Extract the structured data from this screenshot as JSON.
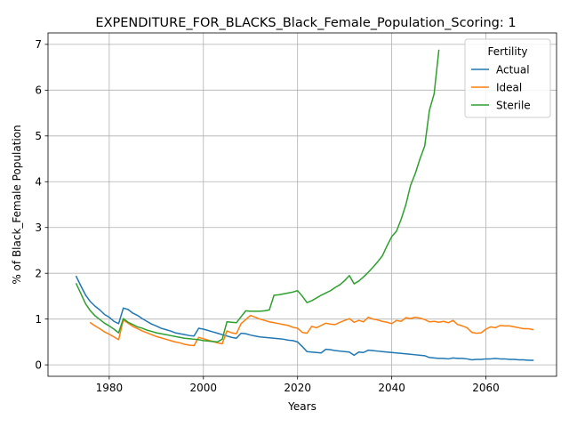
{
  "chart_data": {
    "type": "line",
    "title": "EXPENDITURE_FOR_BLACKS_Black_Female_Population_Scoring: 1",
    "xlabel": "Years",
    "ylabel": "% of Black_Female Population",
    "xlim": [
      1967,
      2075
    ],
    "ylim": [
      -0.25,
      7.25
    ],
    "x_ticks": [
      1980,
      2000,
      2020,
      2040,
      2060
    ],
    "y_ticks": [
      0,
      1,
      2,
      3,
      4,
      5,
      6,
      7
    ],
    "grid": true,
    "legend": {
      "title": "Fertility",
      "position": "top-right"
    },
    "series": [
      {
        "name": "Actual",
        "color": "#1f77b4",
        "points": [
          [
            1973,
            1.93
          ],
          [
            1974,
            1.72
          ],
          [
            1975,
            1.52
          ],
          [
            1976,
            1.38
          ],
          [
            1977,
            1.28
          ],
          [
            1978,
            1.2
          ],
          [
            1979,
            1.1
          ],
          [
            1980,
            1.04
          ],
          [
            1981,
            0.95
          ],
          [
            1982,
            0.9
          ],
          [
            1983,
            1.24
          ],
          [
            1984,
            1.21
          ],
          [
            1985,
            1.13
          ],
          [
            1986,
            1.08
          ],
          [
            1987,
            1.01
          ],
          [
            1988,
            0.95
          ],
          [
            1989,
            0.89
          ],
          [
            1990,
            0.85
          ],
          [
            1991,
            0.8
          ],
          [
            1992,
            0.77
          ],
          [
            1993,
            0.74
          ],
          [
            1994,
            0.7
          ],
          [
            1995,
            0.68
          ],
          [
            1996,
            0.66
          ],
          [
            1997,
            0.64
          ],
          [
            1998,
            0.63
          ],
          [
            1999,
            0.8
          ],
          [
            2000,
            0.78
          ],
          [
            2001,
            0.75
          ],
          [
            2002,
            0.72
          ],
          [
            2003,
            0.69
          ],
          [
            2004,
            0.66
          ],
          [
            2005,
            0.63
          ],
          [
            2006,
            0.6
          ],
          [
            2007,
            0.58
          ],
          [
            2008,
            0.69
          ],
          [
            2009,
            0.68
          ],
          [
            2010,
            0.65
          ],
          [
            2011,
            0.63
          ],
          [
            2012,
            0.61
          ],
          [
            2013,
            0.6
          ],
          [
            2014,
            0.59
          ],
          [
            2015,
            0.58
          ],
          [
            2016,
            0.57
          ],
          [
            2017,
            0.56
          ],
          [
            2018,
            0.54
          ],
          [
            2019,
            0.53
          ],
          [
            2020,
            0.5
          ],
          [
            2021,
            0.4
          ],
          [
            2022,
            0.29
          ],
          [
            2023,
            0.28
          ],
          [
            2024,
            0.27
          ],
          [
            2025,
            0.26
          ],
          [
            2026,
            0.34
          ],
          [
            2027,
            0.33
          ],
          [
            2028,
            0.31
          ],
          [
            2029,
            0.3
          ],
          [
            2030,
            0.29
          ],
          [
            2031,
            0.28
          ],
          [
            2032,
            0.21
          ],
          [
            2033,
            0.28
          ],
          [
            2034,
            0.27
          ],
          [
            2035,
            0.32
          ],
          [
            2036,
            0.31
          ],
          [
            2037,
            0.3
          ],
          [
            2038,
            0.29
          ],
          [
            2039,
            0.28
          ],
          [
            2040,
            0.27
          ],
          [
            2041,
            0.26
          ],
          [
            2042,
            0.25
          ],
          [
            2043,
            0.24
          ],
          [
            2044,
            0.23
          ],
          [
            2045,
            0.22
          ],
          [
            2046,
            0.21
          ],
          [
            2047,
            0.2
          ],
          [
            2048,
            0.16
          ],
          [
            2049,
            0.15
          ],
          [
            2050,
            0.14
          ],
          [
            2051,
            0.14
          ],
          [
            2052,
            0.13
          ],
          [
            2053,
            0.15
          ],
          [
            2054,
            0.14
          ],
          [
            2055,
            0.14
          ],
          [
            2056,
            0.13
          ],
          [
            2057,
            0.11
          ],
          [
            2058,
            0.12
          ],
          [
            2059,
            0.12
          ],
          [
            2060,
            0.13
          ],
          [
            2061,
            0.13
          ],
          [
            2062,
            0.14
          ],
          [
            2063,
            0.13
          ],
          [
            2064,
            0.13
          ],
          [
            2065,
            0.12
          ],
          [
            2066,
            0.12
          ],
          [
            2067,
            0.11
          ],
          [
            2068,
            0.11
          ],
          [
            2069,
            0.1
          ],
          [
            2070,
            0.1
          ]
        ]
      },
      {
        "name": "Ideal",
        "color": "#ff7f0e",
        "points": [
          [
            1976,
            0.92
          ],
          [
            1977,
            0.85
          ],
          [
            1978,
            0.79
          ],
          [
            1979,
            0.72
          ],
          [
            1980,
            0.67
          ],
          [
            1981,
            0.61
          ],
          [
            1982,
            0.55
          ],
          [
            1983,
            0.98
          ],
          [
            1984,
            0.91
          ],
          [
            1985,
            0.84
          ],
          [
            1986,
            0.79
          ],
          [
            1987,
            0.74
          ],
          [
            1988,
            0.7
          ],
          [
            1989,
            0.66
          ],
          [
            1990,
            0.62
          ],
          [
            1991,
            0.59
          ],
          [
            1992,
            0.56
          ],
          [
            1993,
            0.53
          ],
          [
            1994,
            0.5
          ],
          [
            1995,
            0.48
          ],
          [
            1996,
            0.45
          ],
          [
            1997,
            0.43
          ],
          [
            1998,
            0.42
          ],
          [
            1999,
            0.6
          ],
          [
            2000,
            0.57
          ],
          [
            2001,
            0.54
          ],
          [
            2002,
            0.51
          ],
          [
            2003,
            0.48
          ],
          [
            2004,
            0.46
          ],
          [
            2005,
            0.74
          ],
          [
            2006,
            0.7
          ],
          [
            2007,
            0.68
          ],
          [
            2008,
            0.9
          ],
          [
            2009,
            0.99
          ],
          [
            2010,
            1.08
          ],
          [
            2011,
            1.04
          ],
          [
            2012,
            1.0
          ],
          [
            2013,
            0.97
          ],
          [
            2014,
            0.94
          ],
          [
            2015,
            0.92
          ],
          [
            2016,
            0.9
          ],
          [
            2017,
            0.88
          ],
          [
            2018,
            0.86
          ],
          [
            2019,
            0.82
          ],
          [
            2020,
            0.8
          ],
          [
            2021,
            0.71
          ],
          [
            2022,
            0.69
          ],
          [
            2023,
            0.84
          ],
          [
            2024,
            0.81
          ],
          [
            2025,
            0.86
          ],
          [
            2026,
            0.91
          ],
          [
            2027,
            0.89
          ],
          [
            2028,
            0.88
          ],
          [
            2029,
            0.93
          ],
          [
            2030,
            0.97
          ],
          [
            2031,
            1.01
          ],
          [
            2032,
            0.93
          ],
          [
            2033,
            0.97
          ],
          [
            2034,
            0.94
          ],
          [
            2035,
            1.04
          ],
          [
            2036,
            1.0
          ],
          [
            2037,
            0.98
          ],
          [
            2038,
            0.95
          ],
          [
            2039,
            0.93
          ],
          [
            2040,
            0.9
          ],
          [
            2041,
            0.97
          ],
          [
            2042,
            0.95
          ],
          [
            2043,
            1.03
          ],
          [
            2044,
            1.01
          ],
          [
            2045,
            1.04
          ],
          [
            2046,
            1.02
          ],
          [
            2047,
            0.99
          ],
          [
            2048,
            0.94
          ],
          [
            2049,
            0.95
          ],
          [
            2050,
            0.93
          ],
          [
            2051,
            0.95
          ],
          [
            2052,
            0.92
          ],
          [
            2053,
            0.97
          ],
          [
            2054,
            0.88
          ],
          [
            2055,
            0.85
          ],
          [
            2056,
            0.81
          ],
          [
            2057,
            0.71
          ],
          [
            2058,
            0.69
          ],
          [
            2059,
            0.7
          ],
          [
            2060,
            0.78
          ],
          [
            2061,
            0.83
          ],
          [
            2062,
            0.81
          ],
          [
            2063,
            0.86
          ],
          [
            2064,
            0.85
          ],
          [
            2065,
            0.85
          ],
          [
            2066,
            0.83
          ],
          [
            2067,
            0.81
          ],
          [
            2068,
            0.79
          ],
          [
            2069,
            0.79
          ],
          [
            2070,
            0.77
          ]
        ]
      },
      {
        "name": "Sterile",
        "color": "#2ca02c",
        "points": [
          [
            1973,
            1.77
          ],
          [
            1974,
            1.55
          ],
          [
            1975,
            1.33
          ],
          [
            1976,
            1.18
          ],
          [
            1977,
            1.07
          ],
          [
            1978,
            0.99
          ],
          [
            1979,
            0.91
          ],
          [
            1980,
            0.85
          ],
          [
            1981,
            0.78
          ],
          [
            1982,
            0.7
          ],
          [
            1983,
            1.01
          ],
          [
            1984,
            0.93
          ],
          [
            1985,
            0.88
          ],
          [
            1986,
            0.83
          ],
          [
            1987,
            0.8
          ],
          [
            1988,
            0.76
          ],
          [
            1989,
            0.73
          ],
          [
            1990,
            0.7
          ],
          [
            1991,
            0.68
          ],
          [
            1992,
            0.66
          ],
          [
            1993,
            0.64
          ],
          [
            1994,
            0.62
          ],
          [
            1995,
            0.6
          ],
          [
            1996,
            0.58
          ],
          [
            1997,
            0.57
          ],
          [
            1998,
            0.56
          ],
          [
            1999,
            0.55
          ],
          [
            2000,
            0.53
          ],
          [
            2001,
            0.52
          ],
          [
            2002,
            0.51
          ],
          [
            2003,
            0.5
          ],
          [
            2004,
            0.56
          ],
          [
            2005,
            0.94
          ],
          [
            2006,
            0.93
          ],
          [
            2007,
            0.92
          ],
          [
            2008,
            1.05
          ],
          [
            2009,
            1.18
          ],
          [
            2010,
            1.17
          ],
          [
            2011,
            1.17
          ],
          [
            2012,
            1.17
          ],
          [
            2013,
            1.18
          ],
          [
            2014,
            1.2
          ],
          [
            2015,
            1.52
          ],
          [
            2016,
            1.53
          ],
          [
            2017,
            1.55
          ],
          [
            2018,
            1.57
          ],
          [
            2019,
            1.59
          ],
          [
            2020,
            1.62
          ],
          [
            2021,
            1.5
          ],
          [
            2022,
            1.36
          ],
          [
            2023,
            1.4
          ],
          [
            2024,
            1.46
          ],
          [
            2025,
            1.52
          ],
          [
            2026,
            1.57
          ],
          [
            2027,
            1.62
          ],
          [
            2028,
            1.69
          ],
          [
            2029,
            1.75
          ],
          [
            2030,
            1.84
          ],
          [
            2031,
            1.95
          ],
          [
            2032,
            1.77
          ],
          [
            2033,
            1.83
          ],
          [
            2034,
            1.92
          ],
          [
            2035,
            2.02
          ],
          [
            2036,
            2.13
          ],
          [
            2037,
            2.25
          ],
          [
            2038,
            2.38
          ],
          [
            2039,
            2.6
          ],
          [
            2040,
            2.8
          ],
          [
            2041,
            2.92
          ],
          [
            2042,
            3.18
          ],
          [
            2043,
            3.5
          ],
          [
            2044,
            3.92
          ],
          [
            2045,
            4.18
          ],
          [
            2046,
            4.5
          ],
          [
            2047,
            4.78
          ],
          [
            2048,
            5.56
          ],
          [
            2049,
            5.92
          ],
          [
            2050,
            6.87
          ]
        ]
      }
    ]
  }
}
